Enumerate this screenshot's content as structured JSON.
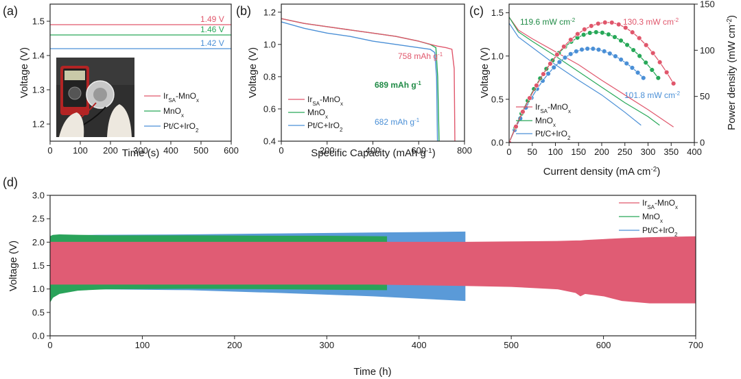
{
  "colors": {
    "irsa": "#e0566b",
    "mnox": "#27a858",
    "ptc": "#4a8fd6",
    "irsa_fill": "#e05c74",
    "mnox_fill": "#2aa35a",
    "ptc_fill": "#5a9ad8"
  },
  "legend": {
    "irsa": {
      "main": "Ir",
      "sub": "SA",
      "tail": "-MnO",
      "tailsub": "x"
    },
    "mnox": {
      "main": "MnO",
      "sub": "x"
    },
    "ptc": {
      "main": "Pt/C+IrO",
      "sub": "2"
    }
  },
  "chart_data": [
    {
      "panel": "(a)",
      "type": "line",
      "xlabel": "Time (s)",
      "ylabel": "Voltage (V)",
      "xlim": [
        0,
        600
      ],
      "ylim": [
        1.15,
        1.55
      ],
      "xticks": [
        "0",
        "100",
        "200",
        "300",
        "400",
        "500",
        "600"
      ],
      "yticks": [
        "1.2",
        "1.3",
        "1.4",
        "1.5"
      ],
      "series": [
        {
          "name": "IrSA-MnOx",
          "x": [
            0,
            600
          ],
          "y": [
            1.49,
            1.49
          ]
        },
        {
          "name": "MnOx",
          "x": [
            0,
            600
          ],
          "y": [
            1.46,
            1.46
          ]
        },
        {
          "name": "Pt/C+IrO2",
          "x": [
            0,
            600
          ],
          "y": [
            1.42,
            1.42
          ]
        }
      ],
      "annotations": [
        "1.49 V",
        "1.46 V",
        "1.42 V"
      ],
      "inset": "photo of multimeter connected to zinc-air battery"
    },
    {
      "panel": "(b)",
      "type": "line",
      "xlabel": "Specific Capacity (mAh g",
      "xlabel_sup": "-1",
      "xlabel_end": ")",
      "ylabel": "Voltage (V)",
      "xlim": [
        0,
        800
      ],
      "ylim": [
        0.4,
        1.25
      ],
      "xticks": [
        "0",
        "200",
        "400",
        "600",
        "800"
      ],
      "yticks": [
        "0.4",
        "0.6",
        "0.8",
        "1.0",
        "1.2"
      ],
      "series": [
        {
          "name": "IrSA-MnOx",
          "x": [
            0,
            100,
            200,
            300,
            400,
            500,
            600,
            680,
            720,
            745,
            755,
            758
          ],
          "y": [
            1.16,
            1.13,
            1.11,
            1.09,
            1.07,
            1.05,
            1.02,
            0.99,
            0.98,
            0.97,
            0.85,
            0.4
          ]
        },
        {
          "name": "MnOx",
          "x": [
            0,
            100,
            200,
            300,
            400,
            500,
            600,
            650,
            675,
            683,
            689
          ],
          "y": [
            1.16,
            1.13,
            1.11,
            1.09,
            1.07,
            1.05,
            1.02,
            1.0,
            0.98,
            0.8,
            0.4
          ]
        },
        {
          "name": "Pt/C+IrO2",
          "x": [
            0,
            100,
            200,
            300,
            400,
            500,
            600,
            650,
            670,
            678,
            682
          ],
          "y": [
            1.14,
            1.1,
            1.07,
            1.05,
            1.02,
            1.0,
            0.98,
            0.97,
            0.95,
            0.8,
            0.4
          ]
        }
      ],
      "annotations": [
        "758 mAh g",
        "689 mAh g",
        "682 mAh g"
      ],
      "ann_sup": "-1"
    },
    {
      "panel": "(c)",
      "type": "line",
      "xlabel": "Current density (mA cm",
      "xlabel_sup": "-2",
      "xlabel_end": ")",
      "ylabel": "Voltage (V)",
      "y2label": "Power density (mW cm",
      "y2label_sup": "-2",
      "y2label_end": ")",
      "xlim": [
        0,
        400
      ],
      "ylim": [
        0,
        1.6
      ],
      "y2lim": [
        0,
        150
      ],
      "xticks": [
        "0",
        "50",
        "100",
        "150",
        "200",
        "250",
        "300",
        "350",
        "400"
      ],
      "yticks": [
        "0.0",
        "0.5",
        "1.0",
        "1.5"
      ],
      "y2ticks": [
        "0",
        "50",
        "100",
        "150"
      ],
      "series": [
        {
          "name": "IrSA-MnOx",
          "x": [
            0,
            20,
            50,
            100,
            150,
            200,
            250,
            300,
            355
          ],
          "y": [
            1.45,
            1.3,
            1.2,
            1.05,
            0.9,
            0.72,
            0.55,
            0.38,
            0.18
          ]
        },
        {
          "name": "MnOx",
          "x": [
            0,
            20,
            50,
            100,
            150,
            200,
            250,
            300,
            325
          ],
          "y": [
            1.45,
            1.28,
            1.17,
            1.0,
            0.82,
            0.64,
            0.46,
            0.3,
            0.2
          ]
        },
        {
          "name": "Pt/C+IrO2",
          "x": [
            0,
            20,
            50,
            100,
            150,
            200,
            250,
            285
          ],
          "y": [
            1.38,
            1.22,
            1.1,
            0.9,
            0.72,
            0.55,
            0.35,
            0.2
          ]
        }
      ],
      "power_series": [
        {
          "name": "IrSA-MnOx",
          "peak_current": 215,
          "peak_power": 130.3,
          "end_current": 355,
          "end_power": 64
        },
        {
          "name": "MnOx",
          "peak_current": 190,
          "peak_power": 119.6,
          "end_current": 322,
          "end_power": 70
        },
        {
          "name": "Pt/C+IrO2",
          "peak_current": 175,
          "peak_power": 101.8,
          "end_current": 290,
          "end_power": 70
        }
      ],
      "annotations": [
        "119.6 mW cm",
        "130.3 mW cm",
        "101.8 mW cm"
      ],
      "ann_sup": "-2"
    },
    {
      "panel": "(d)",
      "type": "area",
      "xlabel": "Time (h)",
      "ylabel": "Voltage (V)",
      "xlim": [
        0,
        700
      ],
      "ylim": [
        0,
        3.0
      ],
      "xticks": [
        "0",
        "100",
        "200",
        "300",
        "400",
        "500",
        "600",
        "700"
      ],
      "yticks": [
        "0.0",
        "0.5",
        "1.0",
        "1.5",
        "2.0",
        "2.5",
        "3.0"
      ],
      "series": [
        {
          "name": "Pt/C+IrO2",
          "t": [
            0,
            5,
            50,
            150,
            250,
            350,
            400,
            450
          ],
          "upper": [
            2.12,
            2.14,
            2.15,
            2.16,
            2.18,
            2.2,
            2.21,
            2.22
          ],
          "lower": [
            0.95,
            0.98,
            1.0,
            0.98,
            0.92,
            0.85,
            0.8,
            0.75
          ]
        },
        {
          "name": "MnOx",
          "t": [
            0,
            3,
            10,
            30,
            60,
            150,
            250,
            300,
            365
          ],
          "upper": [
            2.12,
            2.15,
            2.16,
            2.15,
            2.14,
            2.14,
            2.13,
            2.13,
            2.12
          ],
          "lower": [
            0.72,
            0.82,
            0.9,
            0.97,
            1.0,
            1.01,
            1.0,
            0.99,
            0.98
          ]
        },
        {
          "name": "IrSA-MnOx",
          "t": [
            0,
            50,
            150,
            250,
            350,
            450,
            500,
            550,
            570,
            575,
            580,
            600,
            620,
            650,
            700
          ],
          "upper": [
            2.0,
            2.0,
            2.0,
            2.0,
            2.0,
            2.0,
            2.01,
            2.02,
            2.03,
            2.03,
            2.04,
            2.06,
            2.08,
            2.1,
            2.12
          ],
          "lower": [
            1.1,
            1.1,
            1.1,
            1.1,
            1.1,
            1.07,
            1.05,
            1.0,
            0.92,
            0.85,
            0.9,
            0.85,
            0.75,
            0.7,
            0.7
          ]
        }
      ]
    }
  ]
}
